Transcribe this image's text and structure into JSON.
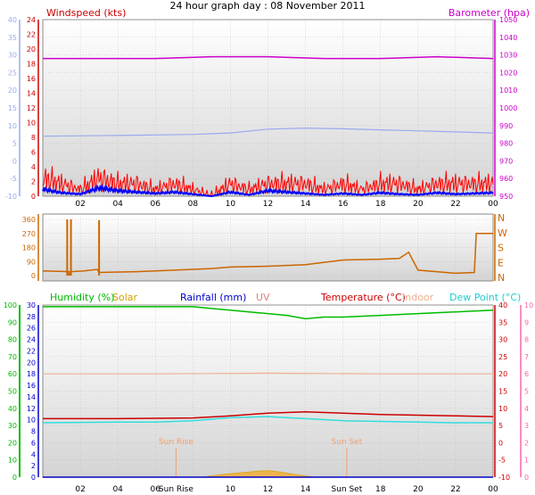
{
  "title": "24 hour graph day : 08 November 2011",
  "colors": {
    "wind": "#ff0000",
    "wind_avg": "#0000ff",
    "barometer": "#cc00cc",
    "winddir": "#cc6600",
    "humidity": "#00bb00",
    "solar": "#e0a000",
    "rainfall": "#0000cc",
    "uv": "#e08080",
    "temperature": "#cc0000",
    "indoor": "#f0b090",
    "dewpoint": "#33dddd",
    "pink_axis": "#ff66aa",
    "blue_axis": "#99aaee",
    "grid": "#bbbbbb",
    "plot_bg_top": "#ffffff",
    "plot_bg_bottom": "#d4d4d4"
  },
  "chart_data": [
    {
      "type": "line",
      "title": "",
      "x_tick_labels": [
        "02",
        "04",
        "06",
        "08",
        "10",
        "12",
        "14",
        "16",
        "18",
        "20",
        "22",
        "00"
      ],
      "left_axis_label": "Windspeed (kts)",
      "left_ticks": [
        "24",
        "22",
        "20",
        "18",
        "16",
        "14",
        "12",
        "10",
        "8",
        "6",
        "4",
        "2",
        "0"
      ],
      "left_range": [
        0,
        24
      ],
      "right_axis_label": "Barometer (hpa)",
      "right_ticks": [
        "1050",
        "1040",
        "1030",
        "1020",
        "1010",
        "1000",
        "990",
        "980",
        "970",
        "960",
        "950"
      ],
      "right_range": [
        950,
        1050
      ],
      "outer_left_ticks": [
        "40",
        "35",
        "30",
        "25",
        "20",
        "15",
        "10",
        "5",
        "0",
        "-5",
        "-10"
      ],
      "outer_left_range": [
        -10,
        40
      ],
      "series": [
        {
          "name": "barometer",
          "axis": "right",
          "x": [
            0,
            3,
            6,
            9,
            12,
            15,
            18,
            21,
            24
          ],
          "y": [
            1028,
            1028,
            1028,
            1029,
            1029,
            1028,
            1028,
            1029,
            1028
          ]
        },
        {
          "name": "temperature",
          "axis": "outer_left",
          "x": [
            0,
            4,
            8,
            10,
            12,
            14,
            16,
            18,
            20,
            22,
            24
          ],
          "y": [
            7,
            7.2,
            7.5,
            7.9,
            9,
            9.3,
            9.1,
            8.8,
            8.5,
            8.2,
            7.9
          ]
        },
        {
          "name": "wind gust",
          "axis": "left",
          "x": [
            0,
            1,
            2,
            3,
            4,
            5,
            6,
            7,
            8,
            9,
            10,
            11,
            12,
            13,
            14,
            15,
            16,
            17,
            18,
            19,
            20,
            21,
            22,
            23,
            24
          ],
          "y": [
            3,
            2,
            1,
            3,
            2,
            2,
            1,
            2,
            1,
            0,
            2,
            1,
            2,
            2,
            2,
            1,
            2,
            1,
            2,
            2,
            1,
            2,
            2,
            2,
            2
          ]
        },
        {
          "name": "wind average",
          "axis": "left",
          "x": [
            0,
            1,
            2,
            3,
            4,
            5,
            6,
            7,
            8,
            9,
            10,
            11,
            12,
            13,
            14,
            15,
            16,
            17,
            18,
            19,
            20,
            21,
            22,
            23,
            24
          ],
          "y": [
            1,
            0.5,
            0.3,
            1.2,
            0.8,
            0.6,
            0.4,
            0.6,
            0.3,
            0,
            0.6,
            0.2,
            0.8,
            0.6,
            0.4,
            0.2,
            0.4,
            0.2,
            0.5,
            0.3,
            0.2,
            0.5,
            0.3,
            0.4,
            0.5
          ]
        }
      ]
    },
    {
      "type": "line",
      "title": "",
      "left_ticks": [
        "360",
        "270",
        "180",
        "90",
        "0"
      ],
      "left_range": [
        0,
        360
      ],
      "right_ticks": [
        "N",
        "W",
        "S",
        "E",
        "N"
      ],
      "series": [
        {
          "name": "wind direction",
          "x": [
            0,
            1.5,
            2.2,
            2.9,
            3,
            5,
            8,
            9,
            10,
            12,
            14,
            16,
            18,
            19,
            19.5,
            20,
            22,
            23,
            23.1,
            24
          ],
          "y": [
            30,
            25,
            30,
            40,
            20,
            25,
            40,
            45,
            55,
            60,
            70,
            100,
            105,
            110,
            150,
            35,
            15,
            20,
            270,
            270
          ]
        }
      ]
    },
    {
      "type": "line",
      "title": "",
      "labels": {
        "humidity": "Humidity (%)",
        "solar": "Solar",
        "rainfall": "Rainfall (mm)",
        "uv": "UV",
        "temperature": "Temperature (°C)",
        "indoor": "Indoor",
        "dewpoint": "Dew Point (°C)"
      },
      "x_tick_labels": [
        "02",
        "04",
        "06",
        "Sun Rise",
        "10",
        "12",
        "14",
        "Sun Set",
        "18",
        "20",
        "22",
        "00"
      ],
      "sun_rise_label": "Sun Rise",
      "sun_set_label": "Sun Set",
      "sun_rise_hour": 7.1,
      "sun_set_hour": 16.2,
      "humidity_ticks": [
        "100",
        "90",
        "80",
        "70",
        "60",
        "50",
        "40",
        "30",
        "20",
        "10",
        "0"
      ],
      "humidity_range": [
        0,
        100
      ],
      "rain_ticks": [
        "30",
        "28",
        "26",
        "24",
        "22",
        "20",
        "18",
        "16",
        "14",
        "12",
        "10",
        "8",
        "6",
        "4",
        "2",
        "0"
      ],
      "rain_range": [
        0,
        30
      ],
      "temp_ticks": [
        "40",
        "35",
        "30",
        "25",
        "20",
        "15",
        "10",
        "5",
        "0",
        "-5",
        "-10"
      ],
      "temp_range": [
        -10,
        40
      ],
      "uv_ticks": [
        "10",
        "9",
        "8",
        "7",
        "6",
        "5",
        "4",
        "3",
        "2",
        "1",
        "0"
      ],
      "uv_range": [
        0,
        10
      ],
      "series": [
        {
          "name": "humidity",
          "axis": "humidity",
          "x": [
            0,
            4,
            8,
            9,
            10,
            11,
            12,
            13,
            14,
            15,
            16,
            18,
            20,
            22,
            24
          ],
          "y": [
            99,
            99,
            99,
            98,
            97,
            96,
            95,
            94,
            92,
            93,
            93,
            94,
            95,
            96,
            97
          ]
        },
        {
          "name": "indoor",
          "axis": "temp",
          "x": [
            0,
            6,
            12,
            18,
            24
          ],
          "y": [
            20,
            20,
            20.2,
            20,
            20
          ]
        },
        {
          "name": "temperature",
          "axis": "temp",
          "x": [
            0,
            4,
            8,
            10,
            12,
            14,
            16,
            18,
            20,
            22,
            24
          ],
          "y": [
            7,
            7,
            7.2,
            7.8,
            8.6,
            9,
            8.6,
            8.2,
            8,
            7.8,
            7.6
          ]
        },
        {
          "name": "dew point",
          "axis": "temp",
          "x": [
            0,
            2,
            4,
            6,
            8,
            10,
            12,
            14,
            16,
            18,
            20,
            22,
            24
          ],
          "y": [
            5.8,
            5.9,
            6,
            6,
            6.4,
            7.3,
            7.6,
            7,
            6.4,
            6.2,
            6,
            5.8,
            5.8
          ]
        },
        {
          "name": "solar",
          "axis": "humidity",
          "x": [
            8.5,
            9.5,
            10.5,
            11.5,
            12,
            12.5,
            13.5,
            14.5
          ],
          "y": [
            0,
            1.5,
            2.5,
            3.5,
            3.8,
            3.2,
            1.5,
            0
          ]
        },
        {
          "name": "rainfall",
          "axis": "rain",
          "x": [
            0,
            24
          ],
          "y": [
            0,
            0
          ]
        }
      ]
    }
  ]
}
